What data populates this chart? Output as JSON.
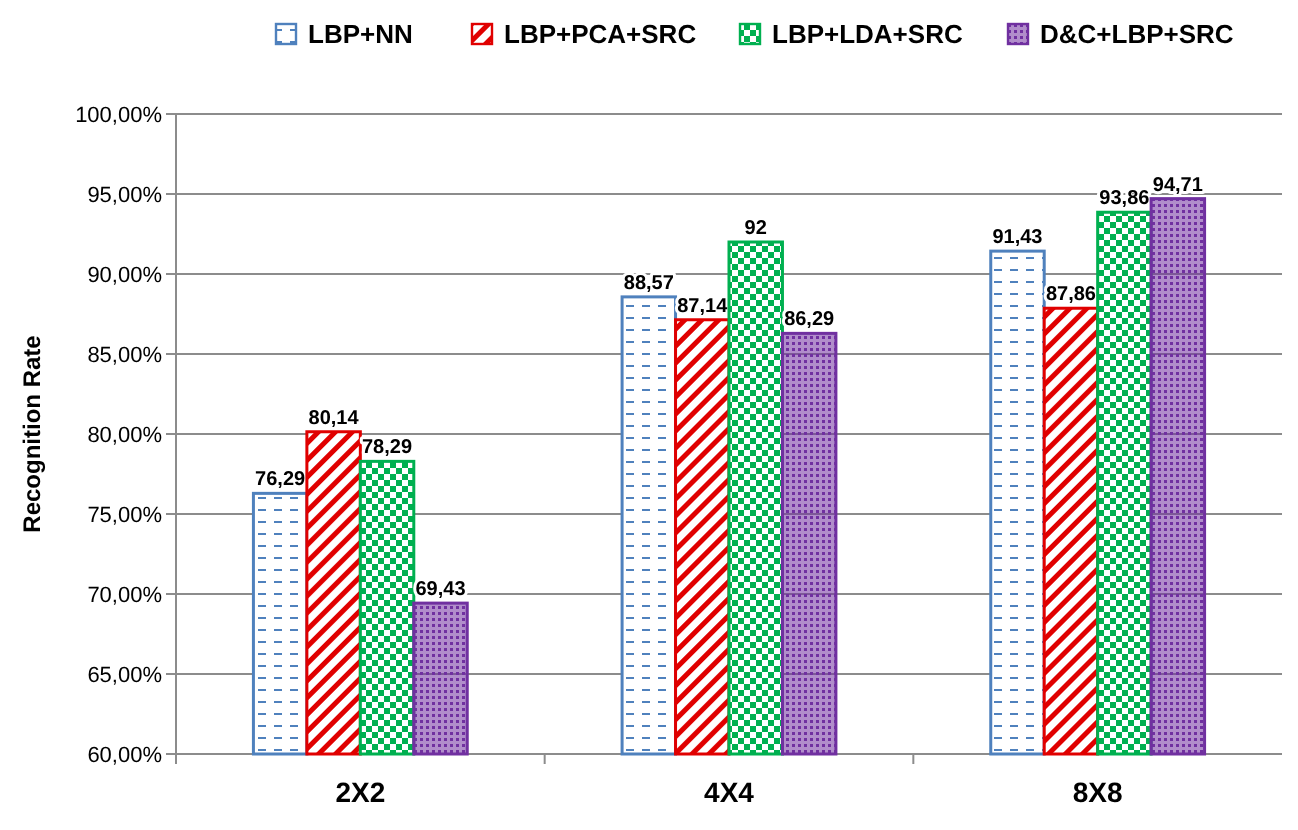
{
  "chart_data": {
    "type": "bar",
    "ylabel": "Recognition Rate",
    "categories": [
      "2X2",
      "4X4",
      "8X8"
    ],
    "series": [
      {
        "name": "LBP+NN",
        "color": "#4f81bd",
        "values": [
          76.29,
          88.57,
          91.43
        ],
        "value_labels": [
          "76,29",
          "88,57",
          "91,43"
        ]
      },
      {
        "name": "LBP+PCA+SRC",
        "color": "#e00000",
        "values": [
          80.14,
          87.14,
          87.86
        ],
        "value_labels": [
          "80,14",
          "87,14",
          "87,86"
        ]
      },
      {
        "name": "LBP+LDA+SRC",
        "color": "#00b050",
        "values": [
          78.29,
          92,
          93.86
        ],
        "value_labels": [
          "78,29",
          "92",
          "93,86"
        ]
      },
      {
        "name": "D&C+LBP+SRC",
        "color": "#7030a0",
        "values": [
          69.43,
          86.29,
          94.71
        ],
        "value_labels": [
          "69,43",
          "86,29",
          "94,71"
        ]
      }
    ],
    "ylim": [
      60,
      100
    ],
    "yticks": [
      {
        "value": 60,
        "label": "60,00%"
      },
      {
        "value": 65,
        "label": "65,00%"
      },
      {
        "value": 70,
        "label": "70,00%"
      },
      {
        "value": 75,
        "label": "75,00%"
      },
      {
        "value": 80,
        "label": "80,00%"
      },
      {
        "value": 85,
        "label": "85,00%"
      },
      {
        "value": 90,
        "label": "90,00%"
      },
      {
        "value": 95,
        "label": "95,00%"
      },
      {
        "value": 100,
        "label": "100,00%"
      }
    ],
    "grid": "y",
    "legend": "top"
  }
}
